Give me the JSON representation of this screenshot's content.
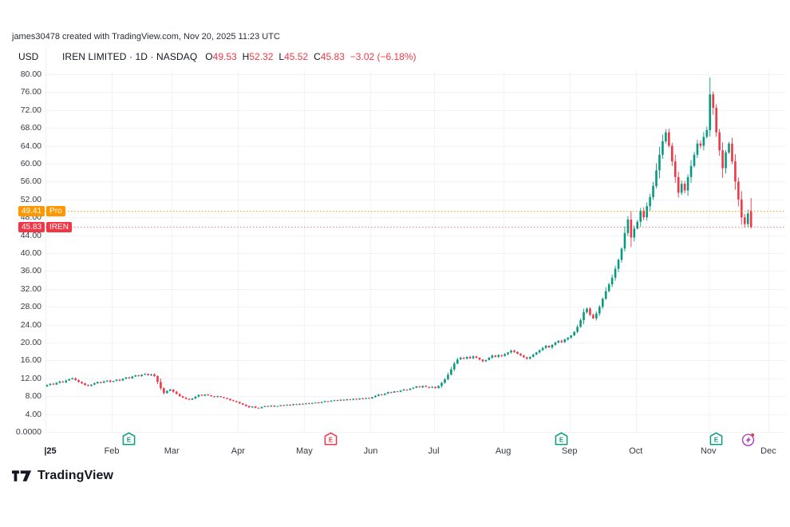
{
  "credit": "james30478 created with TradingView.com, Nov 20, 2025 11:23 UTC",
  "header": {
    "currency": "USD",
    "symbol_title": "IREN LIMITED · 1D · NASDAQ",
    "ohlc_segments": [
      {
        "k": "O",
        "v": "49.53"
      },
      {
        "k": "H",
        "v": "52.32"
      },
      {
        "k": "L",
        "v": "45.52"
      },
      {
        "k": "C",
        "v": "45.83"
      }
    ],
    "change": "−3.02 (−6.18%)"
  },
  "price_labels": {
    "pro": {
      "value": "49.41",
      "tag": "Pro",
      "price": 49.41,
      "color": "#FF9800"
    },
    "current": {
      "value": "45.83",
      "tag": "IREN",
      "price": 45.83,
      "color": "#F23645"
    }
  },
  "logo": {
    "text": "TradingView"
  },
  "chart_data": {
    "type": "candlestick",
    "title": "IREN LIMITED · 1D · NASDAQ",
    "ylabel": "USD",
    "ylim": [
      0,
      80
    ],
    "grid": true,
    "y_tick_labels": [
      "80.00",
      "76.00",
      "72.00",
      "68.00",
      "64.00",
      "60.00",
      "56.00",
      "52.00",
      "48.00",
      "44.00",
      "40.00",
      "36.00",
      "32.00",
      "28.00",
      "24.00",
      "20.00",
      "16.00",
      "12.00",
      "8.00",
      "4.00",
      "0.0000"
    ],
    "x_labels": [
      {
        "text": "|25",
        "day": 0,
        "bold": true
      },
      {
        "text": "Feb",
        "day": 21,
        "bold": false
      },
      {
        "text": "Mar",
        "day": 40,
        "bold": false
      },
      {
        "text": "Apr",
        "day": 61,
        "bold": false
      },
      {
        "text": "May",
        "day": 82,
        "bold": false
      },
      {
        "text": "Jun",
        "day": 103,
        "bold": false
      },
      {
        "text": "Jul",
        "day": 123,
        "bold": false
      },
      {
        "text": "Aug",
        "day": 145,
        "bold": false
      },
      {
        "text": "Sep",
        "day": 166,
        "bold": false
      },
      {
        "text": "Oct",
        "day": 187,
        "bold": false
      },
      {
        "text": "Nov",
        "day": 210,
        "bold": false
      },
      {
        "text": "Dec",
        "day": 229,
        "bold": false
      }
    ],
    "month_boundary_days": [
      21,
      40,
      61,
      82,
      103,
      123,
      145,
      166,
      187,
      210,
      229
    ],
    "first_open": 10.2,
    "closes": [
      10.5,
      10.8,
      10.6,
      11.0,
      11.3,
      11.1,
      11.5,
      11.8,
      12.0,
      11.6,
      11.2,
      10.9,
      10.5,
      10.3,
      10.6,
      10.9,
      11.2,
      11.0,
      11.3,
      11.5,
      11.2,
      11.4,
      11.7,
      11.5,
      11.9,
      12.2,
      12.0,
      12.4,
      12.7,
      12.5,
      12.8,
      13.0,
      12.7,
      12.9,
      12.5,
      11.2,
      9.8,
      8.7,
      9.2,
      9.5,
      9.0,
      8.5,
      8.0,
      7.7,
      7.4,
      7.2,
      7.5,
      7.9,
      8.3,
      8.1,
      8.4,
      8.2,
      8.0,
      7.8,
      8.0,
      7.8,
      7.6,
      7.4,
      7.1,
      6.9,
      6.7,
      6.4,
      6.1,
      5.8,
      5.5,
      5.7,
      5.4,
      5.3,
      5.6,
      5.8,
      5.7,
      5.9,
      5.7,
      5.8,
      6.0,
      5.9,
      6.1,
      6.0,
      6.2,
      6.1,
      6.3,
      6.2,
      6.4,
      6.3,
      6.5,
      6.6,
      6.5,
      6.7,
      6.9,
      6.8,
      7.0,
      7.1,
      7.0,
      7.2,
      7.1,
      7.3,
      7.2,
      7.4,
      7.3,
      7.5,
      7.4,
      7.6,
      7.5,
      7.8,
      8.1,
      8.4,
      8.3,
      8.6,
      8.9,
      8.8,
      9.1,
      9.0,
      9.3,
      9.5,
      9.4,
      9.7,
      9.9,
      10.2,
      10.0,
      10.3,
      10.1,
      9.9,
      10.1,
      9.8,
      10.3,
      11.0,
      11.8,
      12.8,
      14.0,
      15.3,
      16.2,
      16.6,
      16.4,
      16.8,
      16.5,
      16.9,
      16.6,
      16.2,
      15.8,
      16.1,
      16.6,
      17.1,
      16.8,
      17.2,
      17.0,
      17.4,
      17.8,
      18.2,
      17.9,
      17.5,
      17.1,
      16.7,
      16.4,
      16.8,
      17.3,
      17.8,
      18.3,
      18.8,
      19.3,
      18.9,
      19.5,
      20.0,
      20.4,
      20.1,
      20.7,
      21.1,
      21.6,
      22.4,
      23.5,
      25.0,
      26.8,
      27.6,
      26.2,
      25.4,
      26.5,
      28.0,
      29.8,
      31.5,
      33.0,
      34.5,
      36.5,
      38.5,
      41.0,
      44.5,
      47.5,
      43.5,
      45.5,
      47.0,
      49.5,
      48.0,
      50.5,
      52.5,
      55.0,
      58.5,
      62.0,
      65.0,
      67.0,
      64.0,
      60.5,
      57.0,
      53.5,
      55.5,
      54.0,
      57.0,
      59.5,
      62.0,
      64.5,
      64.0,
      66.0,
      67.5,
      75.5,
      72.5,
      67.0,
      63.0,
      59.0,
      62.5,
      64.5,
      60.5,
      56.0,
      52.0,
      48.0,
      46.5,
      48.85,
      45.83
    ],
    "last_candle": {
      "open": 49.53,
      "high": 52.32,
      "low": 45.52,
      "close": 45.83
    },
    "levels": [
      {
        "price": 49.41,
        "color": "#FF9800",
        "style": "dotted",
        "label": "Pro"
      },
      {
        "price": 45.83,
        "color": "#F23645",
        "style": "dotted",
        "label": "IREN"
      }
    ],
    "events": [
      {
        "kind": "earnings",
        "glyph": "E",
        "day": 26,
        "color": "#089981"
      },
      {
        "kind": "earnings",
        "glyph": "E",
        "day": 90,
        "color": "#F23645"
      },
      {
        "kind": "earnings",
        "glyph": "E",
        "day": 163,
        "color": "#089981"
      },
      {
        "kind": "earnings",
        "glyph": "E",
        "day": 212,
        "color": "#089981"
      },
      {
        "kind": "upcoming-event",
        "glyph": "flash",
        "day": 222,
        "color": "#AB47BC",
        "dot_color": "#F23645"
      }
    ],
    "colors": {
      "up": "#089981",
      "down": "#F23645",
      "grid": "#F0F3FA",
      "axis_text": "#363A45",
      "axis_line": "#E0E3EB"
    },
    "legend_position": "none"
  }
}
